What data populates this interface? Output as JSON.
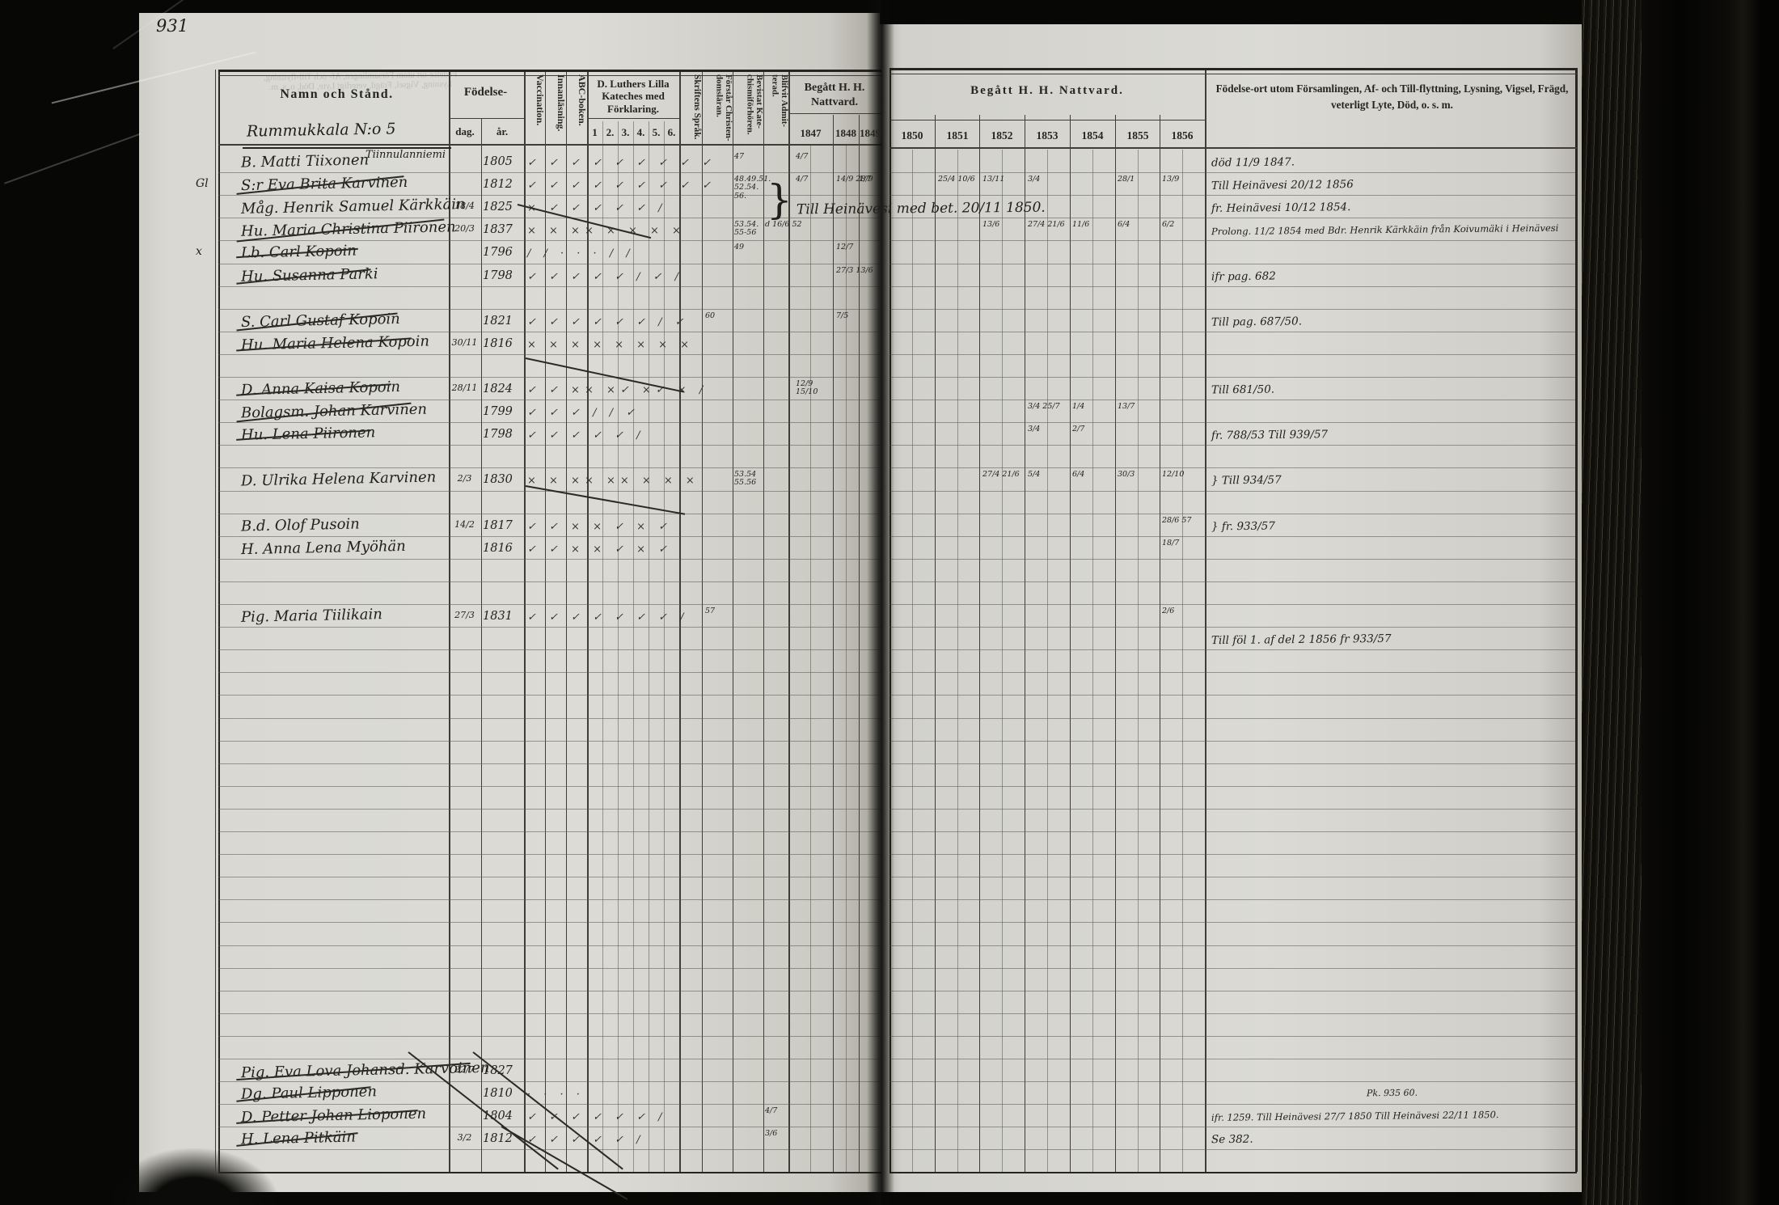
{
  "page_number": "931",
  "colors": {
    "paper": "#d8d7d1",
    "print_ink": "#26251f",
    "hand_ink": "#201f1b",
    "background": "#070706"
  },
  "left_header": {
    "name_col": "Namn och Stånd.",
    "birth": {
      "label": "Födelse-",
      "day": "dag.",
      "year": "år."
    },
    "vertical_cols": [
      "Vaccination.",
      "Innanläsning.",
      "ABC-boken."
    ],
    "catechism": {
      "label": "D. Luthers Lilla Kateches med Förklaring.",
      "sub": [
        "1",
        "2.",
        "3.",
        "4.",
        "5.",
        "6."
      ]
    },
    "vertical_cols2": [
      "Skriftens Språk.",
      "Förstår Christen- domsläran.",
      "Bevistat Kate- chismiförhören.",
      "Blifvit Admit- terad."
    ],
    "communion": {
      "label": "Begått H. H. Nattvard.",
      "years": [
        "1847",
        "1848",
        "1849"
      ]
    }
  },
  "right_header": {
    "communion": {
      "label": "Begått H. H. Nattvard.",
      "years": [
        "1850",
        "1851",
        "1852",
        "1853",
        "1854",
        "1855",
        "1856"
      ]
    },
    "remarks": "Födelse-ort utom Församlingen, Af- och Till-flyttning, Lysning, Vigsel, Frägd, veterligt Lyte, Död, o. s. m."
  },
  "section": {
    "title": "Rummukkala N:o 5",
    "subtitle": "Tiinnulanniemi"
  },
  "gutter_note": "Till Heinävesi med bet. 20/11 1850.",
  "gutter_brace": "}",
  "entries": [
    {
      "row": 0,
      "name": "B. Matti Tiixonen",
      "year": "1805",
      "ticks": "✓ ✓ ✓ ✓ ✓ ✓ ✓ ✓ ✓"
    },
    {
      "row": 1,
      "name": "S:r Eva Brita Karvinen",
      "struck": true,
      "year": "1812",
      "margin": "Gl",
      "ticks": "✓ ✓ ✓ ✓ ✓ ✓ ✓ ✓ ✓"
    },
    {
      "row": 2,
      "name": "Måg. Henrik Samuel Kärkkäin",
      "day": "18/4",
      "year": "1825",
      "ticks": "× ✓ ✓ ✓ ✓ ✓ /"
    },
    {
      "row": 3,
      "name": "Hu. Maria Christina Piironen",
      "struck": true,
      "day": "20/3",
      "year": "1837",
      "ticks": "× × ×× × × × ×"
    },
    {
      "row": 4,
      "name": "Lb. Carl Kopoin",
      "struck": true,
      "year": "1796",
      "margin": "x",
      "ticks": "/ / · · · / /"
    },
    {
      "row": 5,
      "name": "Hu. Susanna Parki",
      "struck": true,
      "year": "1798",
      "ticks": "✓ ✓ ✓ ✓ ✓ / ✓ /"
    },
    {
      "row": 7,
      "name": "S. Carl Gustaf Kopoin",
      "struck": true,
      "year": "1821",
      "ticks": "✓ ✓ ✓ ✓ ✓ ✓ / ✓"
    },
    {
      "row": 8,
      "name": "Hu. Maria Helena Kopoin",
      "struck": true,
      "day": "30/11",
      "year": "1816",
      "ticks": "× × × × × × × ×"
    },
    {
      "row": 10,
      "name": "D. Anna Kaisa Kopoin",
      "struck": true,
      "day": "28/11",
      "year": "1824",
      "ticks": "✓ ✓ ×× ×✓ ×✓ × /"
    },
    {
      "row": 11,
      "name": "Bolagsm. Johan Karvinen",
      "struck": true,
      "year": "1799",
      "ticks": "✓ ✓ ✓ / / ✓"
    },
    {
      "row": 12,
      "name": "Hu. Lena Piironen",
      "struck": true,
      "year": "1798",
      "ticks": "✓ ✓ ✓ ✓ ✓ /"
    },
    {
      "row": 14,
      "name": "D. Ulrika Helena Karvinen",
      "day": "2/3",
      "year": "1830",
      "ticks": "× × ×× ×× × × ×"
    },
    {
      "row": 16,
      "name": "B.d. Olof Pusoin",
      "day": "14/2",
      "year": "1817",
      "ticks": "✓ ✓ × × ✓ × ✓"
    },
    {
      "row": 17,
      "name": "H. Anna Lena Myöhän",
      "year": "1816",
      "ticks": "✓ ✓ × × ✓ × ✓"
    },
    {
      "row": 20,
      "name": "Pig. Maria Tiilikain",
      "day": "27/3",
      "year": "1831",
      "ticks": "✓ ✓ ✓ ✓ ✓ ✓ ✓ /"
    },
    {
      "row": 40,
      "name": "Pig. Eva Lova Johansd. Karvoinen",
      "struck": true,
      "day": "22/7",
      "year": "1827"
    },
    {
      "row": 41,
      "name": "Dg. Paul Lipponen",
      "struck": true,
      "year": "1810",
      "ticks": "· · · ·"
    },
    {
      "row": 42,
      "name": "D. Petter Johan Lioponen",
      "struck": true,
      "year": "1804",
      "ticks": "✓ ✓ ✓ ✓ ✓ ✓ /"
    },
    {
      "row": 43,
      "name": "H. Lena Pitkäin",
      "struck": true,
      "day": "3/2",
      "year": "1812",
      "ticks": "✓ ✓ ✓ ✓ ✓ /"
    }
  ],
  "cell_notes": [
    {
      "row": 0,
      "col": "bevistat",
      "text": "47"
    },
    {
      "row": 0,
      "col": "y1847",
      "text": "4/7"
    },
    {
      "row": 1,
      "col": "bevistat",
      "text": "48.49.51. 52.54. 56."
    },
    {
      "row": 1,
      "col": "y1847",
      "text": "4/7"
    },
    {
      "row": 1,
      "col": "y1848",
      "text": "14/9 28/9"
    },
    {
      "row": 1,
      "col": "y1849",
      "text": "1/7"
    },
    {
      "row": 1,
      "col": "y1851",
      "text": "25/4 10/6"
    },
    {
      "row": 1,
      "col": "y1852",
      "text": "13/11"
    },
    {
      "row": 1,
      "col": "y1853",
      "text": "3/4"
    },
    {
      "row": 1,
      "col": "y1855",
      "text": "28/1"
    },
    {
      "row": 1,
      "col": "y1856",
      "text": "13/9"
    },
    {
      "row": 3,
      "col": "bevistat",
      "text": "53.54. 55-56"
    },
    {
      "row": 3,
      "col": "admit",
      "text": "d 16/6 52"
    },
    {
      "row": 3,
      "col": "y1852",
      "text": "13/6"
    },
    {
      "row": 3,
      "col": "y1853",
      "text": "27/4 21/6"
    },
    {
      "row": 3,
      "col": "y1854",
      "text": "11/6"
    },
    {
      "row": 3,
      "col": "y1855",
      "text": "6/4"
    },
    {
      "row": 3,
      "col": "y1856",
      "text": "6/2"
    },
    {
      "row": 4,
      "col": "bevistat",
      "text": "49"
    },
    {
      "row": 4,
      "col": "y1848",
      "text": "12/7"
    },
    {
      "row": 5,
      "col": "y1848",
      "text": "27/3 13/6"
    },
    {
      "row": 7,
      "col": "forstar",
      "text": "60"
    },
    {
      "row": 7,
      "col": "y1848",
      "text": "7/5"
    },
    {
      "row": 10,
      "col": "y1847",
      "text": "12/9 15/10"
    },
    {
      "row": 11,
      "col": "y1853",
      "text": "3/4 25/7"
    },
    {
      "row": 11,
      "col": "y1854",
      "text": "1/4"
    },
    {
      "row": 11,
      "col": "y1855",
      "text": "13/7"
    },
    {
      "row": 12,
      "col": "y1853",
      "text": "3/4"
    },
    {
      "row": 12,
      "col": "y1854",
      "text": "2/7"
    },
    {
      "row": 14,
      "col": "bevistat",
      "text": "53.54 55.56"
    },
    {
      "row": 14,
      "col": "y1852",
      "text": "27/4 21/6"
    },
    {
      "row": 14,
      "col": "y1853",
      "text": "5/4"
    },
    {
      "row": 14,
      "col": "y1854",
      "text": "6/4"
    },
    {
      "row": 14,
      "col": "y1855",
      "text": "30/3"
    },
    {
      "row": 14,
      "col": "y1856",
      "text": "12/10"
    },
    {
      "row": 16,
      "col": "y1856",
      "text": "28/6 57"
    },
    {
      "row": 17,
      "col": "y1856",
      "text": "18/7"
    },
    {
      "row": 20,
      "col": "forstar",
      "text": "57"
    },
    {
      "row": 20,
      "col": "y1856",
      "text": "2/6"
    },
    {
      "row": 42,
      "col": "admit",
      "text": "4/7"
    },
    {
      "row": 43,
      "col": "admit",
      "text": "3/6"
    }
  ],
  "remarks": [
    {
      "row": 0,
      "text": "död 11/9 1847."
    },
    {
      "row": 1,
      "text": "Till Heinävesi 20/12 1856"
    },
    {
      "row": 2,
      "text": "fr. Heinävesi 10/12 1854."
    },
    {
      "row": 3,
      "text": "Prolong. 11/2 1854 med Bdr. Henrik Kärkkäin från Koivumäki i Heinävesi",
      "long": true
    },
    {
      "row": 5,
      "text": "ifr pag. 682"
    },
    {
      "row": 7,
      "text": "Till pag. 687/50."
    },
    {
      "row": 10,
      "text": "Till 681/50."
    },
    {
      "row": 12,
      "text": "fr. 788/53 Till 939/57"
    },
    {
      "row": 14,
      "text": "Till 934/57",
      "brace": true
    },
    {
      "row": 16,
      "text": "fr. 933/57",
      "brace": true
    },
    {
      "row": 21,
      "text": "Till föl 1. af del 2 1856 fr 933/57"
    },
    {
      "row": 41,
      "text": "Pk. 935 60.",
      "small": true
    },
    {
      "row": 42,
      "text": "ifr. 1259. Till Heinävesi 27/7 1850  Till Heinävesi 22/11 1850.",
      "long": true
    },
    {
      "row": 43,
      "text": "Se 382."
    }
  ]
}
